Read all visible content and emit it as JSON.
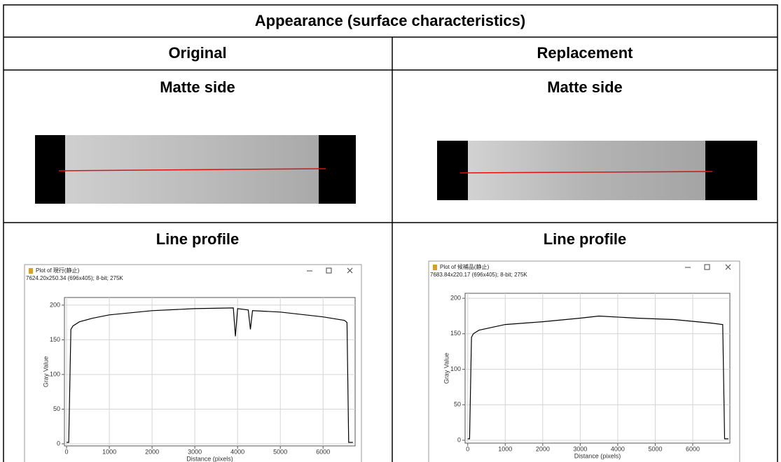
{
  "header": {
    "title": "Appearance (surface characteristics)"
  },
  "columns": [
    "Original",
    "Replacement"
  ],
  "table": {
    "rows": [
      [
        "Matte side",
        "Matte side"
      ],
      [
        "Line profile",
        "Line profile"
      ]
    ]
  },
  "plots": [
    {
      "type": "line",
      "window_title": "Plot of 現行(静止)",
      "info": "7624.20x250.34  (696x405); 8-bit; 275K",
      "x_label": "Distance (pixels)",
      "y_label": "Gray Value",
      "xlim": [
        -50,
        6750
      ],
      "ylim": [
        -3,
        211
      ],
      "xticks": [
        0,
        1000,
        2000,
        3000,
        4000,
        5000,
        6000
      ],
      "yticks": [
        0,
        50,
        100,
        150,
        200
      ],
      "grid": true,
      "color": "#000000",
      "x": [
        0,
        50,
        100,
        150,
        300,
        600,
        1000,
        2000,
        3000,
        3900,
        3950,
        4000,
        4250,
        4300,
        4350,
        5000,
        6000,
        6500,
        6560,
        6600,
        6700
      ],
      "values": [
        2,
        2,
        165,
        170,
        176,
        181,
        186,
        192,
        195,
        196,
        155,
        195,
        193,
        165,
        192,
        190,
        183,
        178,
        175,
        2,
        2
      ]
    },
    {
      "type": "line",
      "window_title": "Plot of 候補品(静止)",
      "info": "7683.84x220.17  (696x405); 8-bit; 275K",
      "x_label": "Distance (pixels)",
      "y_label": "Gray Value",
      "xlim": [
        -70,
        6990
      ],
      "ylim": [
        -4,
        207
      ],
      "xticks": [
        0,
        1000,
        2000,
        3000,
        4000,
        5000,
        6000
      ],
      "yticks": [
        0,
        50,
        100,
        150,
        200
      ],
      "grid": true,
      "color": "#000000",
      "x": [
        0,
        50,
        100,
        150,
        300,
        1000,
        2000,
        3000,
        3500,
        4500,
        5500,
        6500,
        6800,
        6850,
        6950
      ],
      "values": [
        2,
        2,
        145,
        150,
        155,
        163,
        167,
        172,
        175,
        172,
        170,
        165,
        163,
        2,
        2
      ]
    }
  ]
}
